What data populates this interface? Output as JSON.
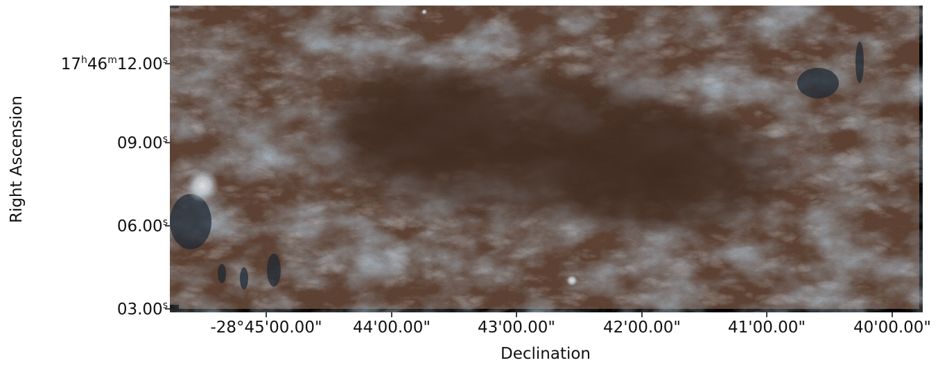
{
  "figure": {
    "axes": {
      "xlabel": "Declination",
      "ylabel": "Right Ascension"
    },
    "y_ticks": [
      {
        "main": "17",
        "h": "h",
        "mid": "46",
        "m": "m",
        "val": "12.00",
        "s": "s"
      },
      {
        "main": "",
        "h": "",
        "mid": "",
        "m": "",
        "val": "09.00",
        "s": "s"
      },
      {
        "main": "",
        "h": "",
        "mid": "",
        "m": "",
        "val": "06.00",
        "s": "s"
      },
      {
        "main": "",
        "h": "",
        "mid": "",
        "m": "",
        "val": "03.00",
        "s": "s"
      }
    ],
    "x_ticks": [
      "-28°45'00.00\"",
      "44'00.00\"",
      "43'00.00\"",
      "42'00.00\"",
      "41'00.00\"",
      "40'00.00\""
    ],
    "image": {
      "description_colors": {
        "background": "#000000",
        "dust_dark": "#3a2a20",
        "dust_brown": "#6b4a3a",
        "gas_blue": "#7f9fb8",
        "gas_white": "#e6eef5",
        "shadow_blue": "#26384a"
      }
    }
  }
}
